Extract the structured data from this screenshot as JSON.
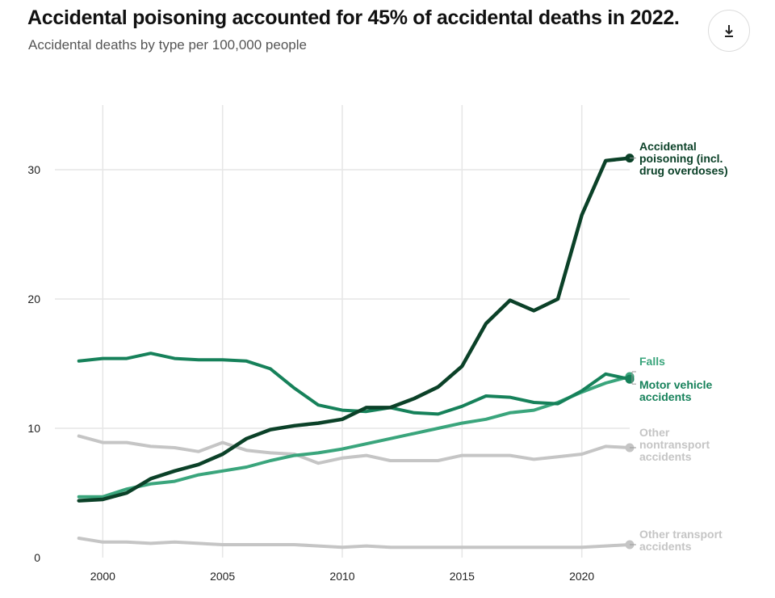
{
  "header": {
    "title": "Accidental poisoning accounted for 45% of accidental deaths in 2022.",
    "subtitle": "Accidental deaths by type per 100,000 people",
    "download_icon": "download-icon"
  },
  "chart_data": {
    "type": "line",
    "title": "Accidental poisoning accounted for 45% of accidental deaths in 2022.",
    "subtitle": "Accidental deaths by type per 100,000 people",
    "xlabel": "",
    "ylabel": "",
    "xlim": [
      1998,
      2022
    ],
    "ylim": [
      0,
      35
    ],
    "x_ticks": [
      2000,
      2005,
      2010,
      2015,
      2020
    ],
    "y_ticks": [
      0,
      10,
      20,
      30
    ],
    "grid": true,
    "legend": "direct labels at line ends",
    "x": [
      1999,
      2000,
      2001,
      2002,
      2003,
      2004,
      2005,
      2006,
      2007,
      2008,
      2009,
      2010,
      2011,
      2012,
      2013,
      2014,
      2015,
      2016,
      2017,
      2018,
      2019,
      2020,
      2021,
      2022
    ],
    "series": [
      {
        "name": "Accidental poisoning (incl. drug overdoses)",
        "label_lines": [
          "Accidental",
          "poisoning (incl.",
          "drug overdoses)"
        ],
        "color": "#0b4128",
        "width": 4.5,
        "values": [
          4.4,
          4.5,
          5.0,
          6.1,
          6.7,
          7.2,
          8.0,
          9.2,
          9.9,
          10.2,
          10.4,
          10.7,
          11.6,
          11.6,
          12.3,
          13.2,
          14.8,
          18.1,
          19.9,
          19.1,
          20.0,
          26.5,
          30.7,
          30.9
        ]
      },
      {
        "name": "Falls",
        "label_lines": [
          "Falls"
        ],
        "color": "#3aa57c",
        "width": 4,
        "values": [
          4.7,
          4.7,
          5.3,
          5.7,
          5.9,
          6.4,
          6.7,
          7.0,
          7.5,
          7.9,
          8.1,
          8.4,
          8.8,
          9.2,
          9.6,
          10.0,
          10.4,
          10.7,
          11.2,
          11.4,
          12.0,
          12.8,
          13.5,
          14.0
        ]
      },
      {
        "name": "Motor vehicle accidents",
        "label_lines": [
          "Motor vehicle",
          "accidents"
        ],
        "color": "#16815a",
        "width": 4,
        "values": [
          15.2,
          15.4,
          15.4,
          15.8,
          15.4,
          15.3,
          15.3,
          15.2,
          14.6,
          13.1,
          11.8,
          11.4,
          11.3,
          11.6,
          11.2,
          11.1,
          11.7,
          12.5,
          12.4,
          12.0,
          11.9,
          12.9,
          14.2,
          13.8
        ]
      },
      {
        "name": "Other nontransport accidents",
        "label_lines": [
          "Other",
          "nontransport",
          "accidents"
        ],
        "color": "#c5c5c5",
        "width": 4,
        "values": [
          9.4,
          8.9,
          8.9,
          8.6,
          8.5,
          8.2,
          8.9,
          8.3,
          8.1,
          8.0,
          7.3,
          7.7,
          7.9,
          7.5,
          7.5,
          7.5,
          7.9,
          7.9,
          7.9,
          7.6,
          7.8,
          8.0,
          8.6,
          8.5
        ]
      },
      {
        "name": "Other transport accidents",
        "label_lines": [
          "Other transport",
          "accidents"
        ],
        "color": "#c5c5c5",
        "width": 4,
        "values": [
          1.5,
          1.2,
          1.2,
          1.1,
          1.2,
          1.1,
          1.0,
          1.0,
          1.0,
          1.0,
          0.9,
          0.8,
          0.9,
          0.8,
          0.8,
          0.8,
          0.8,
          0.8,
          0.8,
          0.8,
          0.8,
          0.8,
          0.9,
          1.0
        ]
      }
    ],
    "label_colors": {
      "Accidental poisoning (incl. drug overdoses)": "#0b4128",
      "Falls": "#3aa57c",
      "Motor vehicle accidents": "#16815a",
      "Other nontransport accidents": "#c5c5c5",
      "Other transport accidents": "#c5c5c5"
    }
  }
}
